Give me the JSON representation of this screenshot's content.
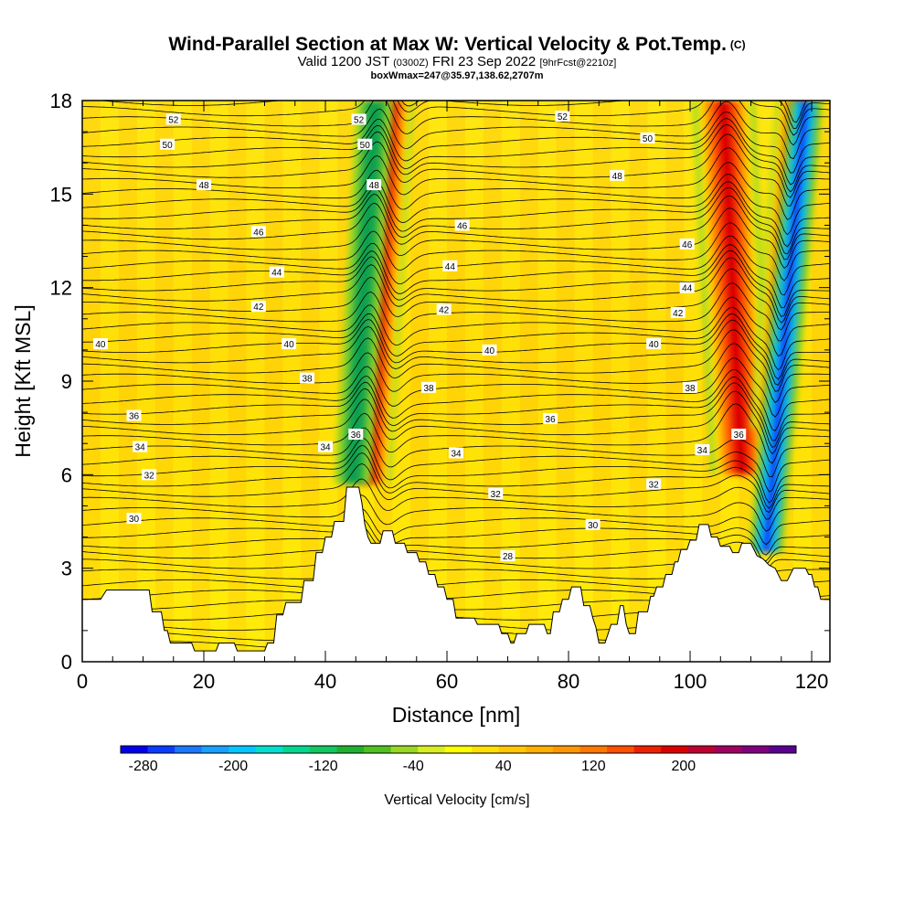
{
  "header": {
    "title": "Wind-Parallel Section at Max W: Vertical Velocity & Pot.Temp.",
    "title_mark": "(C)",
    "valid_prefix": "Valid 1200 JST",
    "valid_utc": "(0300Z)",
    "valid_date": "FRI 23 Sep 2022",
    "forecast_tag": "[9hrFcst@2210z]",
    "box_info": "boxWmax=247@35.97,138.62,2707m"
  },
  "chart_data": {
    "type": "heatmap",
    "xlabel": "Distance [nm]",
    "ylabel": "Height [Kft MSL]",
    "xlim": [
      0,
      123
    ],
    "ylim": [
      0,
      18
    ],
    "x_ticks": [
      "0",
      "20",
      "40",
      "60",
      "80",
      "100",
      "120"
    ],
    "y_ticks": [
      "0",
      "3",
      "6",
      "9",
      "12",
      "15",
      "18"
    ],
    "colorbar": {
      "label": "Vertical Velocity [cm/s]",
      "tick_labels": [
        "-280",
        "-200",
        "-120",
        "-40",
        "40",
        "120",
        "200"
      ],
      "colors": [
        "#0000ee",
        "#0a3cff",
        "#1a78ff",
        "#1aa0ff",
        "#00c8ff",
        "#00e0d0",
        "#00d890",
        "#10c860",
        "#20b030",
        "#50c020",
        "#98d820",
        "#d8ee20",
        "#ffff00",
        "#ffe000",
        "#ffc800",
        "#ffb000",
        "#ff9800",
        "#ff7800",
        "#ff5000",
        "#ee2000",
        "#dd0000",
        "#c00030",
        "#a00060",
        "#800080",
        "#5a0090"
      ]
    },
    "terrain": [
      [
        0,
        2
      ],
      [
        3,
        2
      ],
      [
        4,
        2.3
      ],
      [
        11,
        2.3
      ],
      [
        11.5,
        1.6
      ],
      [
        13,
        1.6
      ],
      [
        13.5,
        1
      ],
      [
        14,
        1
      ],
      [
        14.5,
        0.6
      ],
      [
        18,
        0.6
      ],
      [
        18.5,
        0.35
      ],
      [
        22,
        0.35
      ],
      [
        22.5,
        0.6
      ],
      [
        25,
        0.6
      ],
      [
        25.5,
        0.35
      ],
      [
        30,
        0.35
      ],
      [
        30.5,
        0.6
      ],
      [
        31.5,
        0.6
      ],
      [
        32,
        1.5
      ],
      [
        33,
        1.5
      ],
      [
        33.5,
        1.9
      ],
      [
        36,
        1.9
      ],
      [
        36.5,
        2.6
      ],
      [
        38,
        2.6
      ],
      [
        38.5,
        3.5
      ],
      [
        39.5,
        3.5
      ],
      [
        40,
        4
      ],
      [
        41,
        4
      ],
      [
        41.5,
        4.5
      ],
      [
        43,
        4.5
      ],
      [
        43.5,
        5.6
      ],
      [
        45.5,
        5.6
      ],
      [
        46,
        5.1
      ],
      [
        46.5,
        4.4
      ],
      [
        47,
        4
      ],
      [
        47.5,
        3.8
      ],
      [
        49,
        3.8
      ],
      [
        49.5,
        4.2
      ],
      [
        51,
        4.2
      ],
      [
        51.5,
        3.8
      ],
      [
        53,
        3.8
      ],
      [
        53.5,
        3.5
      ],
      [
        55,
        3.5
      ],
      [
        55.5,
        3.2
      ],
      [
        56.5,
        3.2
      ],
      [
        57,
        2.8
      ],
      [
        58,
        2.8
      ],
      [
        58.5,
        2.4
      ],
      [
        59.5,
        2.4
      ],
      [
        60,
        2
      ],
      [
        61,
        2
      ],
      [
        61.5,
        1.4
      ],
      [
        64.5,
        1.4
      ],
      [
        65,
        1.2
      ],
      [
        68.5,
        1.2
      ],
      [
        69,
        0.9
      ],
      [
        70,
        0.9
      ],
      [
        70.5,
        0.6
      ],
      [
        71,
        0.6
      ],
      [
        71.5,
        0.9
      ],
      [
        73,
        0.9
      ],
      [
        73.5,
        1.2
      ],
      [
        76,
        1.2
      ],
      [
        76.5,
        0.9
      ],
      [
        77,
        0.9
      ],
      [
        77.5,
        1.6
      ],
      [
        78.5,
        1.6
      ],
      [
        79,
        2
      ],
      [
        80,
        2
      ],
      [
        80.5,
        2.4
      ],
      [
        82,
        2.4
      ],
      [
        82.5,
        1.8
      ],
      [
        83.5,
        1.8
      ],
      [
        84,
        1.4
      ],
      [
        84.5,
        1.1
      ],
      [
        85,
        0.6
      ],
      [
        86,
        0.6
      ],
      [
        86.5,
        0.9
      ],
      [
        87,
        1.2
      ],
      [
        88,
        1.2
      ],
      [
        88.5,
        1.8
      ],
      [
        89,
        1.8
      ],
      [
        89.5,
        1.2
      ],
      [
        90,
        0.9
      ],
      [
        91,
        0.9
      ],
      [
        91.5,
        1.6
      ],
      [
        93,
        1.6
      ],
      [
        93.5,
        2.1
      ],
      [
        94,
        2.1
      ],
      [
        94.5,
        2.4
      ],
      [
        95.5,
        2.4
      ],
      [
        96,
        2.8
      ],
      [
        97,
        2.8
      ],
      [
        97.5,
        3.2
      ],
      [
        98,
        3.2
      ],
      [
        98.5,
        3.6
      ],
      [
        99.5,
        3.6
      ],
      [
        100,
        3.9
      ],
      [
        101,
        3.9
      ],
      [
        101.5,
        4.4
      ],
      [
        103,
        4.4
      ],
      [
        103.5,
        4
      ],
      [
        104.5,
        4
      ],
      [
        105,
        3.7
      ],
      [
        106.5,
        3.7
      ],
      [
        107,
        3.5
      ],
      [
        108,
        3.5
      ],
      [
        108.5,
        3.8
      ],
      [
        110,
        3.8
      ],
      [
        111,
        3.4
      ],
      [
        112,
        3.3
      ],
      [
        113,
        3.1
      ],
      [
        114,
        3
      ],
      [
        115,
        2.6
      ],
      [
        116,
        2.6
      ],
      [
        117,
        3
      ],
      [
        119,
        3
      ],
      [
        119.5,
        2.8
      ],
      [
        120,
        2.8
      ],
      [
        120.5,
        2.4
      ],
      [
        121,
        2.4
      ],
      [
        121.5,
        2
      ],
      [
        123,
        2
      ]
    ],
    "updrafts": [
      {
        "x": 47.3,
        "slope": 0.3,
        "ybase": 5.7,
        "width": 1.1,
        "value": 150
      },
      {
        "x": 108.5,
        "slope": -0.25,
        "ybase": 6,
        "width": 1.6,
        "value": 135
      },
      {
        "x": 113.5,
        "slope": 0.4,
        "ybase": 7.5,
        "width": 1.1,
        "value": 120
      }
    ],
    "downdrafts": [
      {
        "x": 44.5,
        "slope": 0.3,
        "ybase": 5.7,
        "width": 1.0,
        "value": -80
      },
      {
        "x": 112.5,
        "slope": 0.45,
        "ybase": 3.5,
        "width": 0.8,
        "value": -200
      }
    ],
    "contour_labels": [
      {
        "text": "52",
        "x": 15,
        "y": 17.4
      },
      {
        "text": "50",
        "x": 14,
        "y": 16.6
      },
      {
        "text": "48",
        "x": 20,
        "y": 15.3
      },
      {
        "text": "46",
        "x": 29,
        "y": 13.8
      },
      {
        "text": "44",
        "x": 32,
        "y": 12.5
      },
      {
        "text": "42",
        "x": 29,
        "y": 11.4
      },
      {
        "text": "40",
        "x": 3,
        "y": 10.2
      },
      {
        "text": "40",
        "x": 34,
        "y": 10.2
      },
      {
        "text": "38",
        "x": 37,
        "y": 9.1
      },
      {
        "text": "36",
        "x": 8.5,
        "y": 7.9
      },
      {
        "text": "34",
        "x": 9.5,
        "y": 6.9
      },
      {
        "text": "34",
        "x": 40,
        "y": 6.9
      },
      {
        "text": "32",
        "x": 11,
        "y": 6.0
      },
      {
        "text": "30",
        "x": 8.5,
        "y": 4.6
      },
      {
        "text": "52",
        "x": 45.5,
        "y": 17.4
      },
      {
        "text": "50",
        "x": 46.5,
        "y": 16.6
      },
      {
        "text": "48",
        "x": 48,
        "y": 15.3
      },
      {
        "text": "36",
        "x": 45,
        "y": 7.3
      },
      {
        "text": "46",
        "x": 62.5,
        "y": 14.0
      },
      {
        "text": "44",
        "x": 60.5,
        "y": 12.7
      },
      {
        "text": "42",
        "x": 59.5,
        "y": 11.3
      },
      {
        "text": "40",
        "x": 67,
        "y": 10.0
      },
      {
        "text": "38",
        "x": 57,
        "y": 8.8
      },
      {
        "text": "36",
        "x": 77,
        "y": 7.8
      },
      {
        "text": "34",
        "x": 61.5,
        "y": 6.7
      },
      {
        "text": "32",
        "x": 68,
        "y": 5.4
      },
      {
        "text": "30",
        "x": 84,
        "y": 4.4
      },
      {
        "text": "28",
        "x": 70,
        "y": 3.4
      },
      {
        "text": "52",
        "x": 79,
        "y": 17.5
      },
      {
        "text": "50",
        "x": 93,
        "y": 16.8
      },
      {
        "text": "48",
        "x": 88,
        "y": 15.6
      },
      {
        "text": "46",
        "x": 99.5,
        "y": 13.4
      },
      {
        "text": "44",
        "x": 99.5,
        "y": 12.0
      },
      {
        "text": "42",
        "x": 98,
        "y": 11.2
      },
      {
        "text": "40",
        "x": 94,
        "y": 10.2
      },
      {
        "text": "38",
        "x": 100,
        "y": 8.8
      },
      {
        "text": "36",
        "x": 108,
        "y": 7.3
      },
      {
        "text": "34",
        "x": 102,
        "y": 6.8
      },
      {
        "text": "32",
        "x": 94,
        "y": 5.7
      }
    ]
  }
}
